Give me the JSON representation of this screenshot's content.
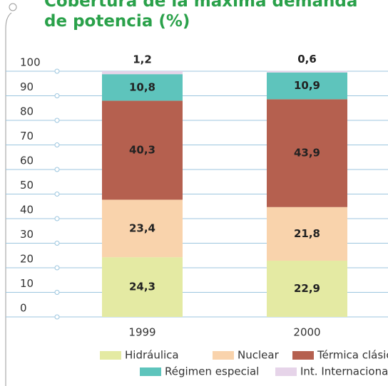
{
  "chart_data": {
    "type": "stacked_bar",
    "title": "Cobertura de la máxima demanda de potencia (%)",
    "categories": [
      "1999",
      "2000"
    ],
    "series": [
      {
        "name": "Hidráulica",
        "color": "#e4eaa3",
        "values": [
          24.3,
          22.9
        ],
        "value_labels": [
          "24,3",
          "22,9"
        ]
      },
      {
        "name": "Nuclear",
        "color": "#f9d3ac",
        "values": [
          23.4,
          21.8
        ],
        "value_labels": [
          "23,4",
          "21,8"
        ]
      },
      {
        "name": "Térmica clásica",
        "color": "#b5604f",
        "values": [
          40.3,
          43.9
        ],
        "value_labels": [
          "40,3",
          "43,9"
        ]
      },
      {
        "name": "Régimen especial",
        "color": "#5ec4bc",
        "values": [
          10.8,
          10.9
        ],
        "value_labels": [
          "10,8",
          "10,9"
        ]
      },
      {
        "name": "Int. Internacionales",
        "color": "#e6d4e9",
        "values": [
          1.2,
          0.6
        ],
        "value_labels": [
          "1,2",
          "0,6"
        ]
      }
    ],
    "ylim": [
      0,
      100
    ],
    "yticks": [
      0,
      10,
      20,
      30,
      40,
      50,
      60,
      70,
      80,
      90,
      100
    ],
    "grid": true
  }
}
